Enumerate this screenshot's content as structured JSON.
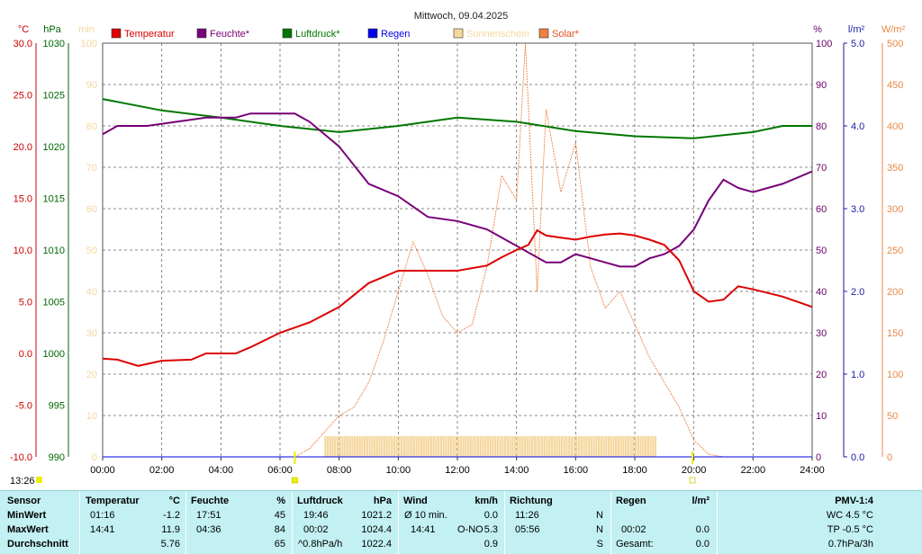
{
  "title": "Mittwoch, 09.04.2025",
  "time_marker": "13:26",
  "axes": {
    "temp": {
      "unit": "°C",
      "ticks": [
        "30.0",
        "25.0",
        "20.0",
        "15.0",
        "10.0",
        "5.0",
        "0.0",
        "-5.0",
        "-10.0"
      ],
      "color": "#cc0000"
    },
    "press": {
      "unit": "hPa",
      "ticks": [
        "1030",
        "1025",
        "1020",
        "1015",
        "1010",
        "1005",
        "1000",
        "995",
        "990"
      ],
      "color": "#006600"
    },
    "sun": {
      "unit": "min",
      "ticks": [
        "100",
        "90",
        "80",
        "70",
        "60",
        "50",
        "40",
        "30",
        "20",
        "10",
        "0"
      ],
      "color": "#f5d79e"
    },
    "hum": {
      "unit": "%",
      "ticks": [
        "100",
        "90",
        "80",
        "70",
        "60",
        "50",
        "40",
        "30",
        "20",
        "10",
        "0"
      ],
      "color": "#660066"
    },
    "rain": {
      "unit": "l/m²",
      "ticks": [
        "5.0",
        "4.0",
        "3.0",
        "2.0",
        "1.0",
        "0.0"
      ],
      "color": "#1a1aa6"
    },
    "solar": {
      "unit": "W/m²",
      "ticks": [
        "500",
        "450",
        "400",
        "350",
        "300",
        "250",
        "200",
        "150",
        "100",
        "50",
        "0"
      ],
      "color": "#e88848"
    },
    "x_ticks": [
      "00:00",
      "02:00",
      "04:00",
      "06:00",
      "08:00",
      "10:00",
      "12:00",
      "14:00",
      "16:00",
      "18:00",
      "20:00",
      "22:00",
      "24:00"
    ]
  },
  "legend": [
    {
      "label": "Temperatur",
      "color": "#dd0000"
    },
    {
      "label": "Feuchte*",
      "color": "#770077"
    },
    {
      "label": "Luftdruck*",
      "color": "#007700"
    },
    {
      "label": "Regen",
      "color": "#0000ee"
    },
    {
      "label": "Sonnenschein",
      "color": "#f5d79e"
    },
    {
      "label": "Solar*",
      "color": "#f08040"
    }
  ],
  "chart_data": {
    "type": "line",
    "title": "Mittwoch, 09.04.2025",
    "x_unit": "hours",
    "xlim": [
      0,
      24
    ],
    "series": [
      {
        "name": "Temperatur",
        "unit": "°C",
        "ylim": [
          -10,
          30
        ],
        "color": "#dd0000",
        "points": [
          [
            0,
            -0.5
          ],
          [
            0.5,
            -0.6
          ],
          [
            1.2,
            -1.2
          ],
          [
            2,
            -0.7
          ],
          [
            3,
            -0.6
          ],
          [
            3.5,
            0
          ],
          [
            4.5,
            0
          ],
          [
            5,
            0.6
          ],
          [
            6,
            2
          ],
          [
            7,
            3
          ],
          [
            8,
            4.5
          ],
          [
            9,
            6.8
          ],
          [
            10,
            8
          ],
          [
            11,
            8
          ],
          [
            12,
            8
          ],
          [
            13,
            8.5
          ],
          [
            13.5,
            9.3
          ],
          [
            14,
            10
          ],
          [
            14.4,
            10.5
          ],
          [
            14.7,
            11.9
          ],
          [
            15,
            11.4
          ],
          [
            15.5,
            11.2
          ],
          [
            16,
            11.0
          ],
          [
            16.5,
            11.3
          ],
          [
            17,
            11.5
          ],
          [
            17.5,
            11.6
          ],
          [
            18,
            11.4
          ],
          [
            18.5,
            11
          ],
          [
            19,
            10.5
          ],
          [
            19.5,
            9
          ],
          [
            20,
            6
          ],
          [
            20.5,
            5
          ],
          [
            21,
            5.2
          ],
          [
            21.5,
            6.5
          ],
          [
            22,
            6.2
          ],
          [
            23,
            5.5
          ],
          [
            24,
            4.5
          ]
        ]
      },
      {
        "name": "Feuchte*",
        "unit": "%",
        "ylim": [
          0,
          100
        ],
        "color": "#770077",
        "points": [
          [
            0,
            78
          ],
          [
            0.5,
            80
          ],
          [
            1.5,
            80
          ],
          [
            2.5,
            81
          ],
          [
            3.5,
            82
          ],
          [
            4.5,
            82
          ],
          [
            5,
            83
          ],
          [
            6,
            83
          ],
          [
            6.5,
            83
          ],
          [
            7,
            81
          ],
          [
            8,
            75
          ],
          [
            9,
            66
          ],
          [
            10,
            63
          ],
          [
            11,
            58
          ],
          [
            12,
            57
          ],
          [
            13,
            55
          ],
          [
            14,
            51
          ],
          [
            15,
            47
          ],
          [
            15.5,
            47
          ],
          [
            16,
            49
          ],
          [
            16.5,
            48
          ],
          [
            17,
            47
          ],
          [
            17.5,
            46
          ],
          [
            18,
            46
          ],
          [
            18.5,
            48
          ],
          [
            19,
            49
          ],
          [
            19.5,
            51
          ],
          [
            20,
            55
          ],
          [
            20.5,
            62
          ],
          [
            21,
            67
          ],
          [
            21.5,
            65
          ],
          [
            22,
            64
          ],
          [
            23,
            66
          ],
          [
            24,
            69
          ]
        ]
      },
      {
        "name": "Luftdruck*",
        "unit": "hPa",
        "ylim": [
          990,
          1030
        ],
        "color": "#007700",
        "points": [
          [
            0,
            1024.6
          ],
          [
            2,
            1023.5
          ],
          [
            4,
            1022.8
          ],
          [
            6,
            1022
          ],
          [
            8,
            1021.4
          ],
          [
            10,
            1022
          ],
          [
            12,
            1022.8
          ],
          [
            14,
            1022.4
          ],
          [
            16,
            1021.5
          ],
          [
            18,
            1021
          ],
          [
            20,
            1020.8
          ],
          [
            22,
            1021.4
          ],
          [
            23,
            1022
          ],
          [
            24,
            1022
          ]
        ]
      },
      {
        "name": "Regen",
        "unit": "l/m²",
        "ylim": [
          0,
          5
        ],
        "color": "#0000ee",
        "points": [
          [
            0,
            0
          ],
          [
            24,
            0
          ]
        ]
      },
      {
        "name": "Sonnenschein",
        "unit": "min",
        "ylim": [
          0,
          100
        ],
        "color": "#f5d79e",
        "bars_from_to": [
          7.5,
          18.7
        ],
        "bar_value": 5
      },
      {
        "name": "Solar*",
        "unit": "W/m²",
        "ylim": [
          0,
          500
        ],
        "color": "#f08040",
        "points": [
          [
            6.5,
            0
          ],
          [
            7,
            10
          ],
          [
            7.5,
            30
          ],
          [
            8,
            50
          ],
          [
            8.5,
            60
          ],
          [
            9,
            90
          ],
          [
            9.5,
            140
          ],
          [
            10,
            200
          ],
          [
            10.5,
            260
          ],
          [
            11,
            220
          ],
          [
            11.5,
            170
          ],
          [
            12,
            150
          ],
          [
            12.5,
            160
          ],
          [
            13,
            230
          ],
          [
            13.5,
            340
          ],
          [
            14,
            310
          ],
          [
            14.3,
            500
          ],
          [
            14.7,
            200
          ],
          [
            15,
            420
          ],
          [
            15.5,
            320
          ],
          [
            16,
            380
          ],
          [
            16.5,
            230
          ],
          [
            17,
            180
          ],
          [
            17.5,
            200
          ],
          [
            18,
            160
          ],
          [
            18.5,
            120
          ],
          [
            19,
            90
          ],
          [
            19.5,
            60
          ],
          [
            20,
            20
          ],
          [
            20.5,
            3
          ],
          [
            21,
            0
          ]
        ]
      }
    ]
  },
  "stats": {
    "headers": {
      "sensor": "Sensor",
      "temp": "Temperatur",
      "temp_unit": "°C",
      "hum": "Feuchte",
      "hum_unit": "%",
      "press": "Luftdruck",
      "press_unit": "hPa",
      "wind": "Wind",
      "wind_unit": "km/h",
      "dir": "Richtung",
      "rain": "Regen",
      "rain_unit": "l/m²",
      "pmv": "PMV-1:4"
    },
    "rows": [
      {
        "label": "MinWert",
        "temp_time": "01:16",
        "temp_val": "-1.2",
        "hum_time": "17:51",
        "hum_val": "45",
        "press_time": "19:46",
        "press_val": "1021.2",
        "wind_label": "Ø 10 min.",
        "wind_val": "0.0",
        "dir_time": "11:26",
        "dir_val": "N",
        "rain_time": "",
        "rain_val": "",
        "pmv": "WC 4.5 °C"
      },
      {
        "label": "MaxWert",
        "temp_time": "14:41",
        "temp_val": "11.9",
        "hum_time": "04:36",
        "hum_val": "84",
        "press_time": "00:02",
        "press_val": "1024.4",
        "wind_label": "14:41",
        "wind_dir": "O-NO",
        "wind_val": "5.3",
        "dir_time": "05:56",
        "dir_val": "N",
        "rain_time": "00:02",
        "rain_val": "0.0",
        "pmv": "TP -0.5 °C"
      },
      {
        "label": "Durchschnitt",
        "temp_time": "",
        "temp_val": "5.76",
        "hum_time": "",
        "hum_val": "65",
        "press_time": "^0.8hPa/h",
        "press_val": "1022.4",
        "wind_label": "",
        "wind_val": "0.9",
        "dir_time": "",
        "dir_val": "S",
        "rain_time": "Gesamt:",
        "rain_val": "0.0",
        "pmv": "0.7hPa/3h"
      }
    ]
  }
}
